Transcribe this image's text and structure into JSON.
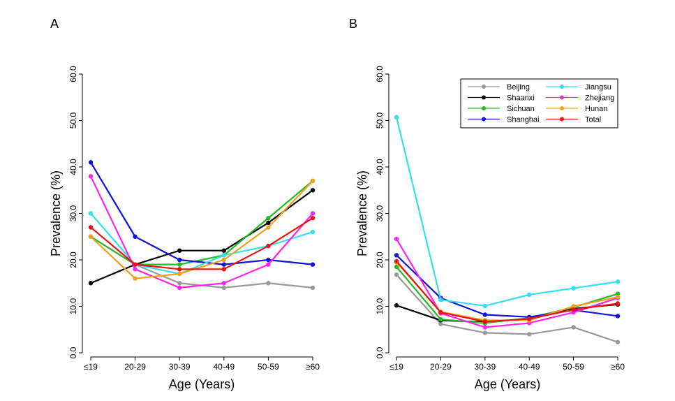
{
  "figure": {
    "colors": {
      "Beijing": "#999999",
      "Shaanxi": "#000000",
      "Sichuan": "#22bb22",
      "Shanghai": "#1111dd",
      "Jiangsu": "#33e0f0",
      "Zhejiang": "#ff22ee",
      "Hunan": "#f0a020",
      "Total": "#ee1111"
    },
    "legend_order": [
      [
        "Beijing",
        "Jiangsu"
      ],
      [
        "Shaanxi",
        "Zhejiang"
      ],
      [
        "Sichuan",
        "Hunan"
      ],
      [
        "Shanghai",
        "Total"
      ]
    ]
  },
  "chart_data": [
    {
      "type": "line",
      "panel_label": "A",
      "xlabel": "Age (Years)",
      "ylabel": "Prevalence (%)",
      "categories": [
        "≤19",
        "20-29",
        "30-39",
        "40-49",
        "50-59",
        "≥60"
      ],
      "ylim": [
        0,
        60
      ],
      "yticks": [
        "0.0",
        "10.0",
        "20.0",
        "30.0",
        "40.0",
        "50.0",
        "60.0"
      ],
      "grid": false,
      "legend": "none",
      "series": [
        {
          "name": "Beijing",
          "values": [
            25,
            19,
            15,
            14,
            15,
            14
          ]
        },
        {
          "name": "Shaanxi",
          "values": [
            15,
            19,
            22,
            22,
            28,
            35
          ]
        },
        {
          "name": "Sichuan",
          "values": [
            25,
            19,
            19,
            21,
            29,
            37
          ]
        },
        {
          "name": "Shanghai",
          "values": [
            41,
            25,
            20,
            19,
            20,
            19
          ]
        },
        {
          "name": "Jiangsu",
          "values": [
            30,
            19,
            17,
            21,
            23,
            26
          ]
        },
        {
          "name": "Zhejiang",
          "values": [
            38,
            18,
            14,
            15,
            19,
            30
          ]
        },
        {
          "name": "Hunan",
          "values": [
            25,
            16,
            17,
            20,
            27,
            37
          ]
        },
        {
          "name": "Total",
          "values": [
            27,
            19,
            18,
            18,
            23,
            29
          ]
        }
      ]
    },
    {
      "type": "line",
      "panel_label": "B",
      "xlabel": "Age (Years)",
      "ylabel": "Prevalence (%)",
      "categories": [
        "≤19",
        "20-29",
        "30-39",
        "40-49",
        "50-59",
        "≥60"
      ],
      "ylim": [
        0,
        60
      ],
      "yticks": [
        "0.0",
        "10.0",
        "20.0",
        "30.0",
        "40.0",
        "50.0",
        "60.0"
      ],
      "grid": false,
      "legend": "top-right",
      "series": [
        {
          "name": "Beijing",
          "values": [
            16.8,
            6.2,
            4.3,
            4.0,
            5.5,
            2.3
          ]
        },
        {
          "name": "Shaanxi",
          "values": [
            10.2,
            7.0,
            6.6,
            7.3,
            9.5,
            10.4
          ]
        },
        {
          "name": "Sichuan",
          "values": [
            18.5,
            7.2,
            6.4,
            7.5,
            9.8,
            12.7
          ]
        },
        {
          "name": "Shanghai",
          "values": [
            21.0,
            11.8,
            8.2,
            7.7,
            9.2,
            7.9
          ]
        },
        {
          "name": "Jiangsu",
          "values": [
            50.7,
            11.4,
            10.1,
            12.5,
            13.9,
            15.3
          ]
        },
        {
          "name": "Zhejiang",
          "values": [
            24.5,
            8.5,
            5.5,
            6.4,
            8.7,
            11.8
          ]
        },
        {
          "name": "Hunan",
          "values": [
            19.5,
            8.8,
            7.0,
            7.0,
            10.0,
            12.0
          ]
        },
        {
          "name": "Total",
          "values": [
            19.7,
            8.7,
            6.7,
            7.3,
            9.3,
            10.6
          ]
        }
      ]
    }
  ]
}
